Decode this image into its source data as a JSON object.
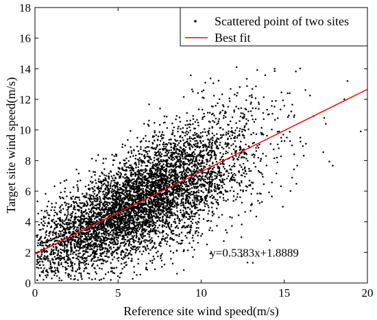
{
  "chart_data": {
    "type": "scatter",
    "xlabel": "Reference site wind speed(m/s)",
    "ylabel": "Target site wind speed(m/s)",
    "xlim": [
      0,
      20
    ],
    "ylim": [
      0,
      18
    ],
    "xticks": [
      0,
      5,
      10,
      15,
      20
    ],
    "yticks": [
      0,
      2,
      4,
      6,
      8,
      10,
      12,
      14,
      16,
      18
    ],
    "grid": false,
    "legend_position": "top-right",
    "series": [
      {
        "name": "Scattered point of two sites",
        "kind": "scatter",
        "marker": "dot",
        "color": "#000000",
        "approx_count": 6000,
        "x": [
          0.5,
          1.2,
          2.0,
          3.1,
          4.0,
          5.2,
          6.0,
          7.5,
          8.4,
          9.6,
          10.5,
          11.8,
          12.6,
          13.9,
          15.2,
          16.3,
          17.5,
          18.8,
          19.6
        ],
        "y": [
          2.1,
          1.0,
          4.5,
          3.0,
          6.5,
          4.2,
          7.8,
          5.0,
          8.9,
          6.2,
          10.1,
          7.4,
          11.0,
          8.3,
          12.4,
          9.1,
          10.4,
          13.2,
          9.9
        ]
      },
      {
        "name": "Best fit",
        "kind": "line",
        "color": "#ff0000",
        "slope": 0.5383,
        "intercept": 1.8889
      }
    ],
    "annotations": [
      {
        "text": "y=0.5383x+1.8889",
        "x": 13.2,
        "y": 2.0
      }
    ]
  }
}
